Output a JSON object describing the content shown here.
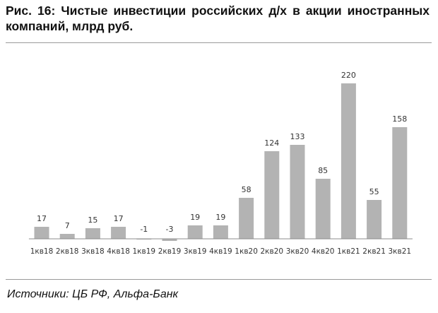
{
  "title": "Рис. 16: Чистые инвестиции российских д/х в акции иностранных компаний, млрд руб.",
  "source": "Источники: ЦБ РФ, Альфа-Банк",
  "chart_data": {
    "type": "bar",
    "categories": [
      "1кв18",
      "2кв18",
      "3кв18",
      "4кв18",
      "1кв19",
      "2кв19",
      "3кв19",
      "4кв19",
      "1кв20",
      "2кв20",
      "3кв20",
      "4кв20",
      "1кв21",
      "2кв21",
      "3кв21"
    ],
    "values": [
      17,
      7,
      15,
      17,
      -1,
      -3,
      19,
      19,
      58,
      124,
      133,
      85,
      220,
      55,
      158
    ],
    "data_labels": [
      "17",
      "7",
      "15",
      "17",
      "-1",
      "-3",
      "19",
      "19",
      "58",
      "124",
      "133",
      "85",
      "220",
      "55",
      "158"
    ],
    "ylim": [
      -5,
      225
    ],
    "bar_color": "#b3b3b3",
    "axis_color": "#8c8c8c",
    "grid": false,
    "legend": "none"
  }
}
